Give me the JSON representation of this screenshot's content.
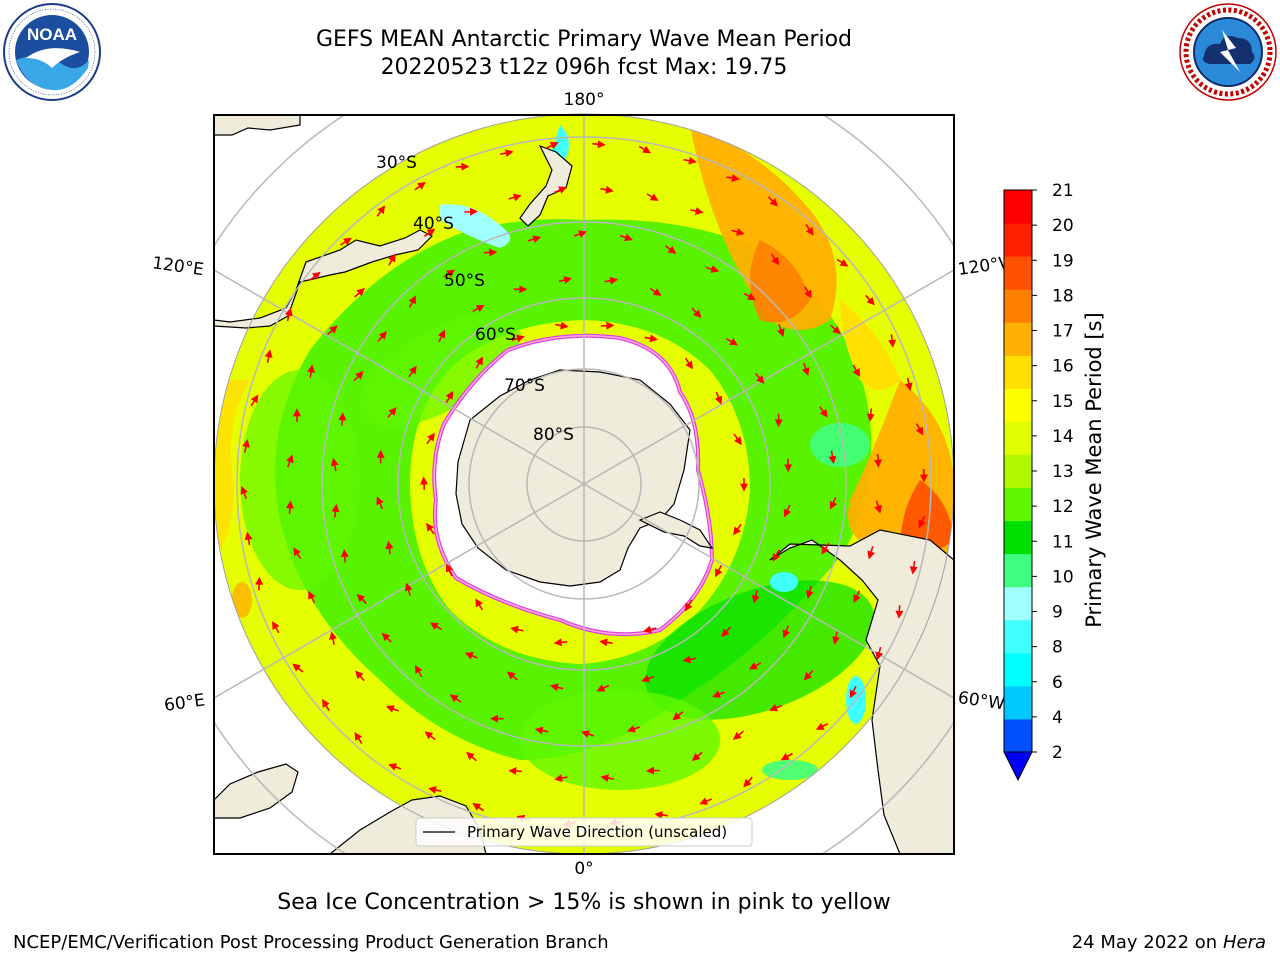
{
  "header": {
    "title_line1": "GEFS MEAN Antarctic Primary Wave Mean Period",
    "title_line2": "20220523 t12z 096h fcst   Max: 19.75"
  },
  "logos": {
    "left": {
      "name": "NOAA",
      "text": "NOAA",
      "ring_text": "NATIONAL OCEANIC AND ATMOSPHERIC ADMINISTRATION · U.S. DEPARTMENT OF COMMERCE"
    },
    "right": {
      "name": "National Weather Service",
      "ring_text": "NATIONAL WEATHER SERVICE"
    }
  },
  "map": {
    "projection": "south-polar-stereographic",
    "longitude_labels": [
      "180°",
      "120°E",
      "120°W",
      "60°E",
      "60°W",
      "0°"
    ],
    "latitude_labels": [
      "30°S",
      "40°S",
      "50°S",
      "60°S",
      "70°S",
      "80°S"
    ],
    "legend_label": "Primary Wave Direction (unscaled)",
    "colors": {
      "land": "#efecdc",
      "sea_ice": "#ffffff",
      "ice_edge": [
        "#e040e0",
        "#ff8fc8",
        "#f0c020"
      ],
      "graticule": "#b8b8b8",
      "arrow": "#ff0000"
    }
  },
  "chart_data": {
    "type": "heatmap",
    "variable": "Primary Wave Mean Period",
    "units": "s",
    "max_value": 19.75,
    "colorbar": {
      "label": "Primary Wave Mean Period [s]",
      "ticks": [
        "21",
        "20",
        "19",
        "18",
        "17",
        "16",
        "15",
        "14",
        "13",
        "12",
        "11",
        "10",
        "9",
        "8",
        "6",
        "4",
        "2"
      ],
      "levels": [
        2,
        4,
        6,
        8,
        9,
        10,
        11,
        12,
        13,
        14,
        15,
        16,
        17,
        18,
        19,
        20,
        21
      ],
      "colors": [
        "#0050ff",
        "#00c8ff",
        "#00ffff",
        "#40ffff",
        "#a0ffff",
        "#40ff80",
        "#00e000",
        "#60f800",
        "#b0f800",
        "#e0ff00",
        "#ffff00",
        "#ffe000",
        "#ffb000",
        "#ff8000",
        "#ff5000",
        "#ff2000",
        "#ff0000"
      ],
      "under_color": "#0000ff",
      "extend": "min"
    }
  },
  "footer": {
    "note": "Sea Ice Concentration > 15% is shown in pink to yellow",
    "credit_left": "NCEP/EMC/Verification Post Processing Product Generation Branch",
    "date": "24 May 2022 on",
    "machine": "Hera"
  }
}
